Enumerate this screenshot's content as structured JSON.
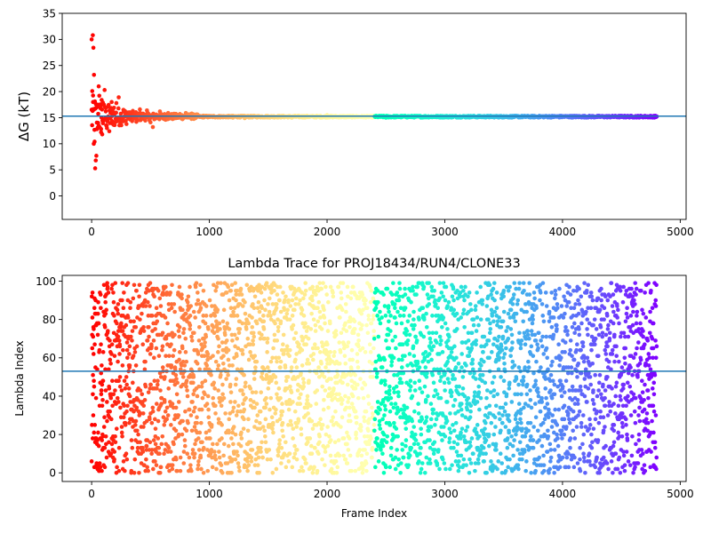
{
  "chart_data": [
    {
      "type": "scatter",
      "title": "",
      "xlabel": "",
      "ylabel": "ΔG (kT)",
      "ylabel_italic_part": "G",
      "xlim": [
        -250,
        5050
      ],
      "ylim": [
        -4.5,
        35
      ],
      "x_ticks": [
        0,
        1000,
        2000,
        3000,
        4000,
        5000
      ],
      "y_ticks": [
        0,
        5,
        10,
        15,
        20,
        25,
        30,
        35
      ],
      "hline": {
        "y": 15.3,
        "color": "#1f77b4"
      },
      "colormap": "rainbow-reversed",
      "x_max_frame": 4800,
      "grid": false,
      "series": [
        {
          "description_only": "converging free-energy estimate",
          "points": [
            [
              0,
              30.0
            ],
            [
              10,
              30.8
            ],
            [
              15,
              28.4
            ],
            [
              20,
              23.2
            ],
            [
              5,
              20.1
            ],
            [
              12,
              18.0
            ],
            [
              18,
              10.0
            ],
            [
              25,
              10.4
            ],
            [
              30,
              5.3
            ],
            [
              35,
              6.8
            ],
            [
              40,
              7.7
            ],
            [
              45,
              12.8
            ],
            [
              50,
              17.5
            ],
            [
              55,
              14.0
            ],
            [
              60,
              21.0
            ],
            [
              65,
              19.2
            ],
            [
              70,
              13.1
            ],
            [
              75,
              16.8
            ],
            [
              80,
              12.2
            ],
            [
              85,
              18.4
            ],
            [
              90,
              11.8
            ],
            [
              95,
              17.9
            ],
            [
              100,
              14.6
            ],
            [
              110,
              20.3
            ],
            [
              120,
              16.2
            ],
            [
              130,
              13.0
            ],
            [
              140,
              17.1
            ],
            [
              150,
              12.4
            ],
            [
              160,
              15.9
            ],
            [
              170,
              18.0
            ],
            [
              180,
              13.8
            ],
            [
              190,
              16.9
            ],
            [
              200,
              14.2
            ],
            [
              210,
              17.8
            ],
            [
              220,
              14.7
            ],
            [
              230,
              18.9
            ],
            [
              240,
              15.1
            ],
            [
              250,
              13.6
            ],
            [
              270,
              16.5
            ],
            [
              290,
              14.4
            ],
            [
              310,
              16.0
            ],
            [
              330,
              14.9
            ],
            [
              350,
              16.3
            ],
            [
              380,
              14.2
            ],
            [
              410,
              16.6
            ],
            [
              440,
              15.0
            ],
            [
              470,
              16.4
            ],
            [
              500,
              14.1
            ],
            [
              520,
              13.2
            ],
            [
              550,
              15.6
            ],
            [
              580,
              16.2
            ],
            [
              610,
              14.8
            ],
            [
              650,
              15.9
            ],
            [
              700,
              14.9
            ],
            [
              750,
              15.7
            ],
            [
              800,
              15.9
            ],
            [
              850,
              15.8
            ],
            [
              900,
              15.6
            ],
            [
              950,
              15.4
            ],
            [
              1000,
              15.2
            ],
            [
              1100,
              15.1
            ],
            [
              1200,
              15.0
            ],
            [
              1300,
              14.9
            ],
            [
              1400,
              15.1
            ],
            [
              1500,
              15.2
            ],
            [
              1700,
              15.0
            ],
            [
              2000,
              15.5
            ],
            [
              2300,
              15.3
            ],
            [
              2500,
              15.0
            ],
            [
              3000,
              15.2
            ],
            [
              3500,
              15.3
            ],
            [
              4000,
              15.2
            ],
            [
              4500,
              15.2
            ],
            [
              4800,
              15.2
            ]
          ]
        }
      ]
    },
    {
      "type": "scatter",
      "title": "Lambda Trace for PROJ18434/RUN4/CLONE33",
      "xlabel": "Frame Index",
      "ylabel": "Lambda Index",
      "xlim": [
        -250,
        5050
      ],
      "ylim": [
        -4.5,
        103
      ],
      "x_ticks": [
        0,
        1000,
        2000,
        3000,
        4000,
        5000
      ],
      "y_ticks": [
        0,
        20,
        40,
        60,
        80,
        100
      ],
      "hline": {
        "y": 53,
        "color": "#1f77b4"
      },
      "colormap": "rainbow-reversed",
      "x_max_frame": 4800,
      "lambda_max": 99,
      "grid": false
    }
  ]
}
